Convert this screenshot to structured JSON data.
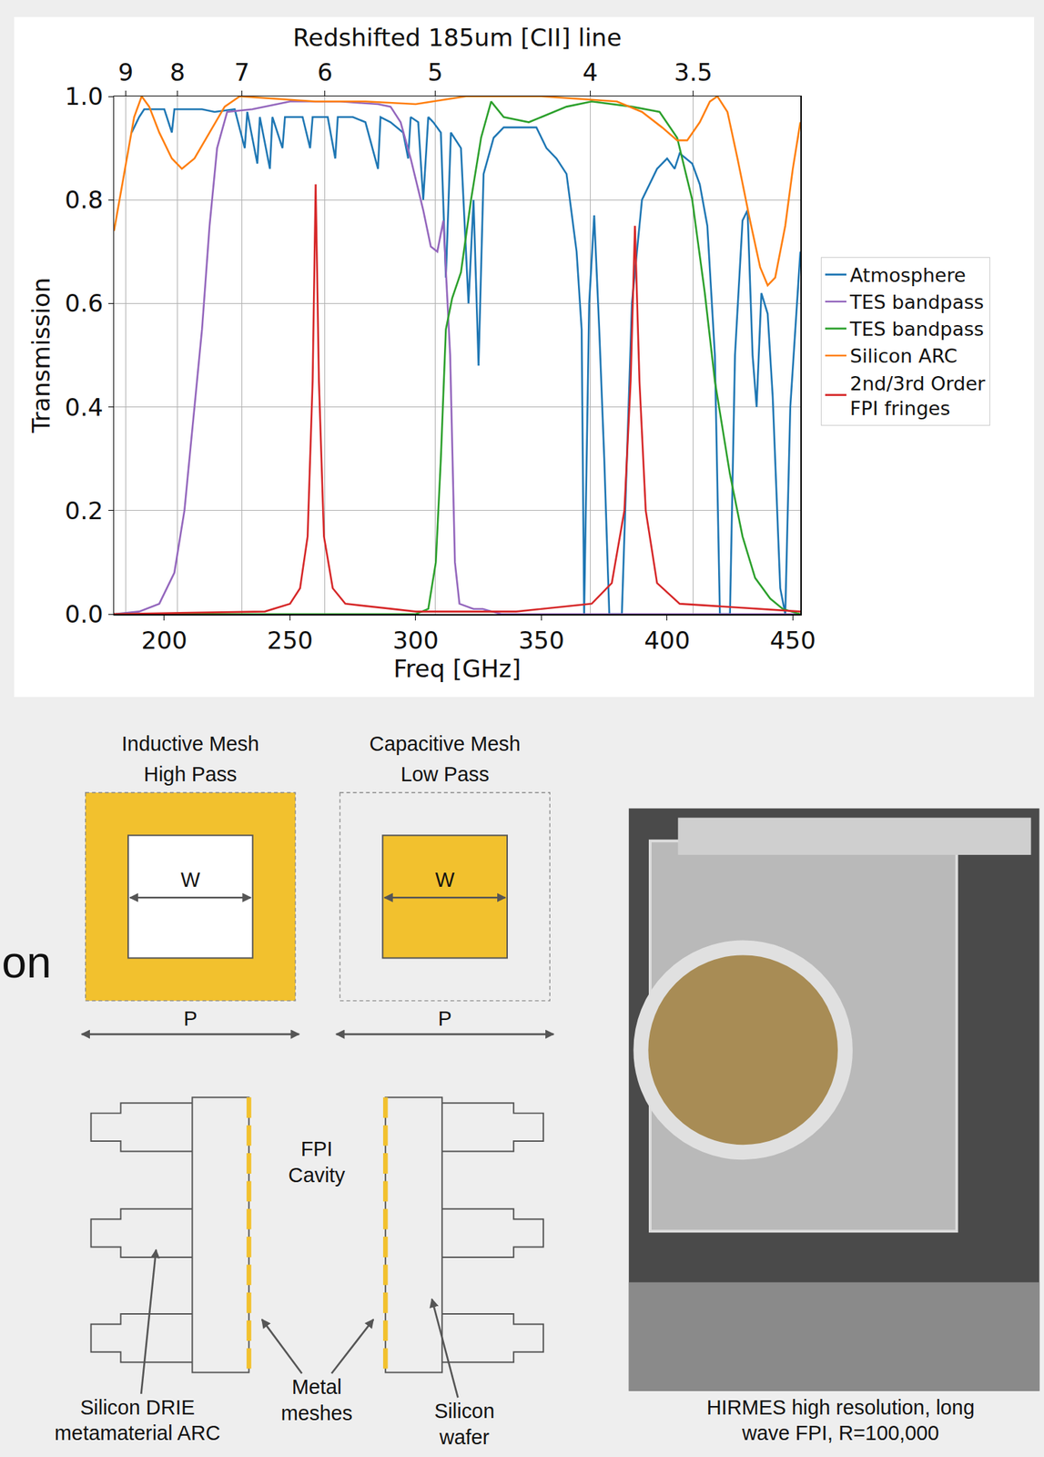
{
  "chart_data": {
    "type": "line",
    "x_title": "Freq [GHz]",
    "y_title": "Transmission",
    "x2_title": "Redshifted 185um [CII] line",
    "xlim": [
      180,
      453
    ],
    "xticks": [
      200,
      250,
      300,
      350,
      400,
      450
    ],
    "x2ticks": [
      {
        "value": 184.7,
        "label": "9"
      },
      {
        "value": 205.2,
        "label": "8"
      },
      {
        "value": 230.9,
        "label": "7"
      },
      {
        "value": 263.9,
        "label": "6"
      },
      {
        "value": 307.8,
        "label": "5"
      },
      {
        "value": 369.4,
        "label": "4"
      },
      {
        "value": 410.4,
        "label": "3.5"
      }
    ],
    "ylim": [
      0,
      1
    ],
    "yticks": [
      {
        "value": 0,
        "label": "0.0"
      },
      0.2,
      0.4,
      0.6,
      0.8,
      {
        "value": 1,
        "label": "1.0"
      }
    ],
    "grid": true,
    "legend": "right",
    "series": [
      {
        "name": "Atmosphere",
        "color": "#1f77b4",
        "x": [
          187,
          190,
          192,
          200,
          203,
          204,
          215,
          220,
          228,
          232,
          233,
          237,
          238,
          242,
          243,
          247,
          248,
          255,
          258,
          259,
          265,
          268,
          269,
          275,
          280,
          285,
          286,
          290,
          295,
          297,
          298,
          301,
          303,
          305,
          307,
          310,
          312,
          314,
          318,
          321,
          323,
          325,
          327,
          331,
          335,
          348,
          352,
          356,
          360,
          364,
          366,
          367,
          369,
          371,
          373,
          375,
          377,
          382,
          384,
          386,
          390,
          396,
          400,
          403,
          405,
          410,
          413,
          416,
          419,
          421,
          425,
          427,
          430,
          432,
          434,
          435.6,
          437.5,
          440,
          442,
          445,
          447,
          449,
          453
        ],
        "values": [
          0.93,
          0.96,
          0.975,
          0.975,
          0.93,
          0.975,
          0.975,
          0.97,
          0.975,
          0.9,
          0.97,
          0.87,
          0.96,
          0.86,
          0.96,
          0.9,
          0.96,
          0.96,
          0.9,
          0.96,
          0.96,
          0.88,
          0.96,
          0.96,
          0.95,
          0.86,
          0.96,
          0.95,
          0.93,
          0.88,
          0.96,
          0.95,
          0.8,
          0.96,
          0.95,
          0.93,
          0.65,
          0.93,
          0.9,
          0.6,
          0.8,
          0.48,
          0.85,
          0.92,
          0.94,
          0.94,
          0.9,
          0.88,
          0.85,
          0.7,
          0.55,
          0,
          0.6,
          0.77,
          0.55,
          0.3,
          0,
          0,
          0.3,
          0.6,
          0.8,
          0.86,
          0.88,
          0.86,
          0.89,
          0.87,
          0.83,
          0.75,
          0.5,
          0,
          0,
          0.5,
          0.76,
          0.78,
          0.5,
          0.4,
          0.62,
          0.58,
          0.42,
          0.05,
          0,
          0.4,
          0.7
        ]
      },
      {
        "name": "TES bandpass",
        "color": "#9467bd",
        "x": [
          180,
          190,
          198,
          204,
          208,
          212,
          215,
          218,
          221,
          225,
          235,
          250,
          270,
          285,
          290,
          294,
          298,
          303,
          306,
          308.6,
          311,
          313.7,
          315.6,
          317.4,
          323,
          326.7,
          334,
          453
        ],
        "values": [
          0,
          0.005,
          0.02,
          0.08,
          0.2,
          0.4,
          0.55,
          0.75,
          0.9,
          0.97,
          0.975,
          0.99,
          0.99,
          0.985,
          0.98,
          0.95,
          0.88,
          0.78,
          0.71,
          0.7,
          0.76,
          0.5,
          0.1,
          0.02,
          0.01,
          0.01,
          0,
          0
        ]
      },
      {
        "name": "TES bandpass",
        "color": "#2ca02c",
        "x": [
          180,
          300,
          305,
          308,
          310,
          312,
          314.5,
          318,
          322,
          326,
          330,
          335,
          345,
          360,
          370,
          386,
          397,
          404,
          410,
          415,
          419,
          425,
          430,
          435,
          441,
          446,
          453
        ],
        "values": [
          0,
          0,
          0.01,
          0.1,
          0.3,
          0.55,
          0.61,
          0.66,
          0.8,
          0.92,
          0.99,
          0.96,
          0.95,
          0.98,
          0.99,
          0.98,
          0.97,
          0.92,
          0.8,
          0.62,
          0.45,
          0.27,
          0.15,
          0.07,
          0.03,
          0.01,
          0
        ]
      },
      {
        "name": "Silicon ARC",
        "color": "#ff7f0e",
        "x": [
          180,
          184,
          188,
          191,
          194,
          198,
          203,
          207,
          212,
          218,
          224,
          230,
          260,
          280,
          300,
          320,
          350,
          380,
          390,
          398,
          404,
          408,
          413,
          417,
          420,
          424,
          428,
          433,
          437,
          440,
          443,
          447,
          450,
          453
        ],
        "values": [
          0.74,
          0.85,
          0.96,
          1.0,
          0.98,
          0.93,
          0.88,
          0.86,
          0.88,
          0.93,
          0.98,
          1.0,
          0.99,
          0.99,
          0.985,
          1.0,
          1.0,
          0.99,
          0.97,
          0.94,
          0.915,
          0.915,
          0.95,
          0.99,
          1.0,
          0.97,
          0.88,
          0.76,
          0.67,
          0.635,
          0.65,
          0.75,
          0.86,
          0.95
        ]
      },
      {
        "name": "2nd/3rd Order FPI fringes",
        "color": "#d62728",
        "x": [
          180,
          240,
          250,
          254,
          257,
          259,
          260.2,
          261.5,
          263.5,
          267,
          272,
          300,
          340,
          370,
          378,
          383,
          385.5,
          387.2,
          389,
          391.5,
          396,
          405,
          453
        ],
        "values": [
          0,
          0.005,
          0.02,
          0.05,
          0.15,
          0.45,
          0.83,
          0.45,
          0.15,
          0.05,
          0.02,
          0.005,
          0.005,
          0.02,
          0.06,
          0.2,
          0.45,
          0.75,
          0.45,
          0.2,
          0.06,
          0.02,
          0.005
        ]
      }
    ]
  },
  "margin_text": "on",
  "diagram": {
    "meshes": [
      {
        "title": [
          "Inductive Mesh",
          "High Pass"
        ],
        "inner_label": "W",
        "period_label": "P"
      },
      {
        "title": [
          "Capacitive Mesh",
          "Low Pass"
        ],
        "inner_label": "W",
        "period_label": "P"
      }
    ],
    "cross_section": {
      "cavity_label": [
        "FPI",
        "Cavity"
      ],
      "labels": [
        [
          "Silicon DRIE",
          "metamaterial ARC"
        ],
        [
          "Metal",
          "meshes"
        ],
        [
          "Silicon",
          "wafer"
        ]
      ]
    }
  },
  "photo": {
    "caption": [
      "HIRMES high resolution,  long",
      "wave FPI, R=100,000"
    ]
  }
}
